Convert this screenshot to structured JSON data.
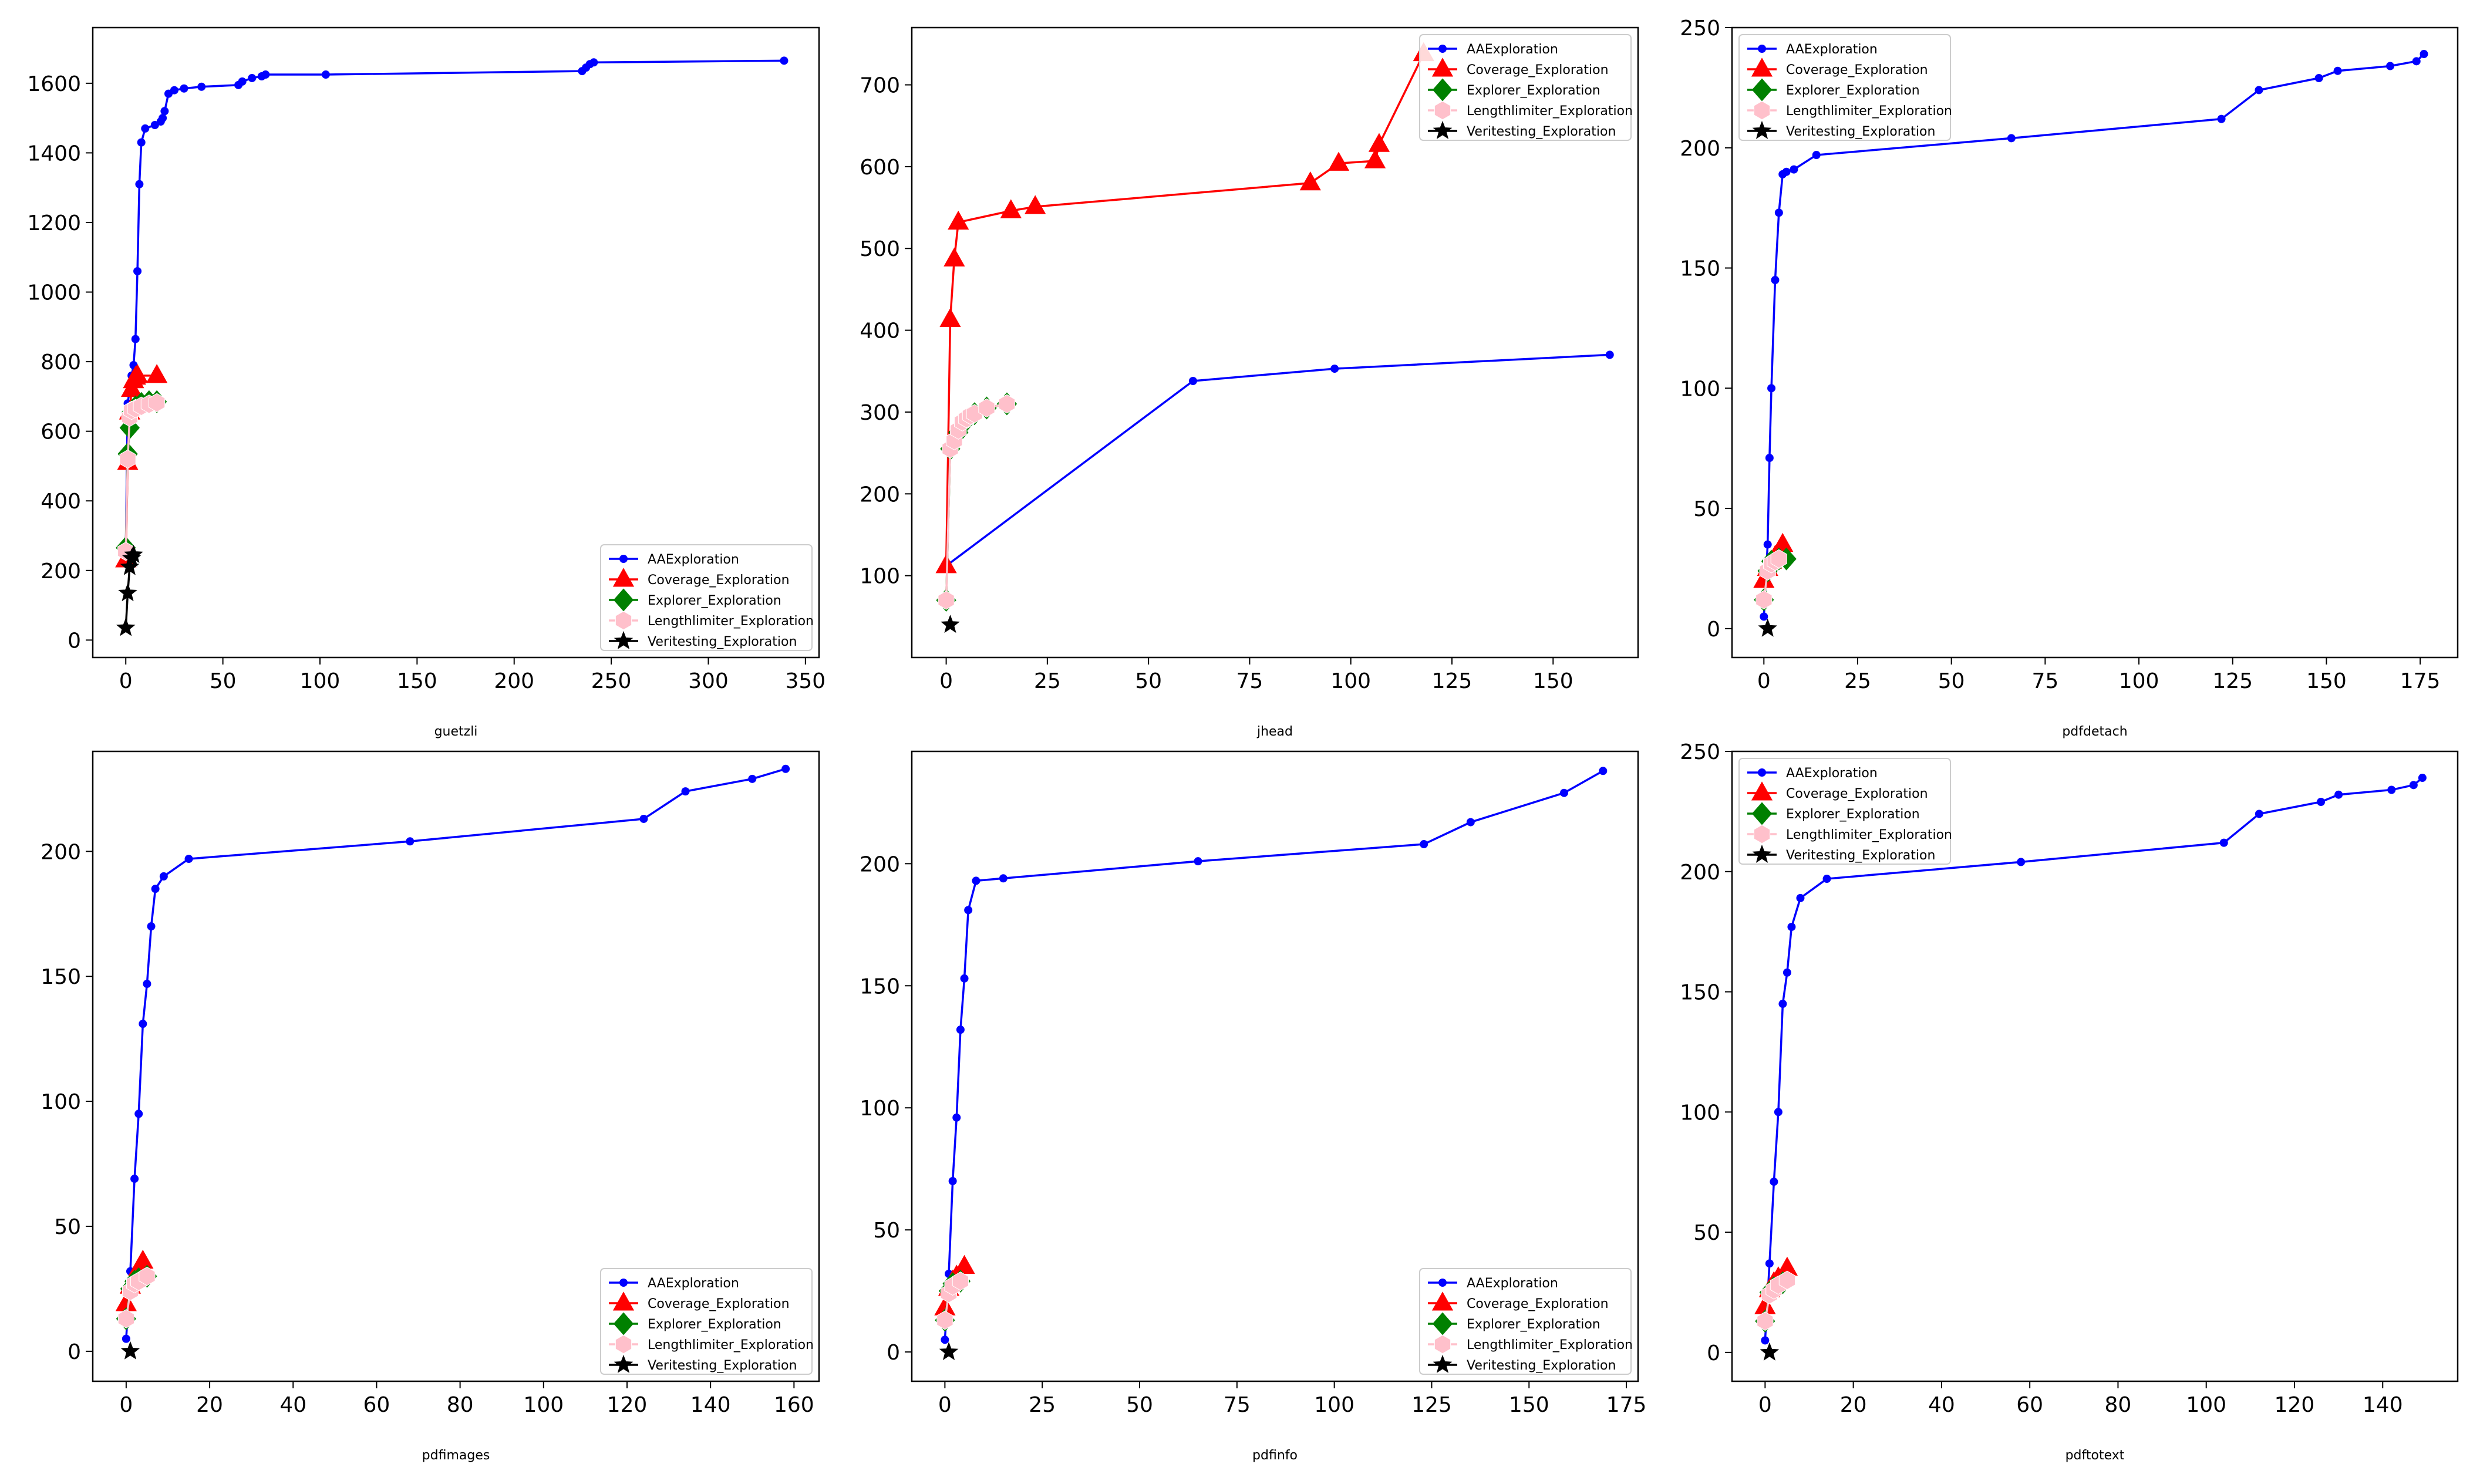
{
  "figure_title": "",
  "colors": {
    "AAExploration": "#0000ff",
    "Coverage_Exploration": "#ff0000",
    "Explorer_Exploration": "#008000",
    "Lengthlimiter_Exploration": "#ffc0cb",
    "Veritesting_Exploration": "#000000"
  },
  "chart_data": [
    {
      "type": "line",
      "title": "",
      "xlabel": "guetzli",
      "ylabel": "",
      "xlim": [
        -17,
        357
      ],
      "ylim": [
        -50,
        1760
      ],
      "xticks": [
        0,
        50,
        100,
        150,
        200,
        250,
        300,
        350
      ],
      "yticks": [
        0,
        200,
        400,
        600,
        800,
        1000,
        1200,
        1400,
        1600
      ],
      "legend": "lower-right",
      "series": [
        {
          "name": "AAExploration",
          "marker": "dot",
          "x": [
            0,
            1,
            2,
            3,
            4,
            5,
            6,
            7,
            8,
            10,
            15,
            18,
            19,
            20,
            22,
            25,
            30,
            39,
            58,
            60,
            65,
            70,
            72,
            103,
            235,
            237,
            239,
            241,
            339
          ],
          "y": [
            250,
            680,
            720,
            760,
            790,
            865,
            1060,
            1310,
            1430,
            1470,
            1480,
            1490,
            1500,
            1520,
            1570,
            1580,
            1585,
            1590,
            1595,
            1605,
            1615,
            1620,
            1625,
            1625,
            1635,
            1645,
            1655,
            1660,
            1665
          ]
        },
        {
          "name": "Coverage_Exploration",
          "marker": "triangle",
          "x": [
            0,
            1,
            2,
            3,
            4,
            5,
            6,
            16
          ],
          "y": [
            230,
            510,
            655,
            720,
            745,
            755,
            760,
            760
          ]
        },
        {
          "name": "Explorer_Exploration",
          "marker": "diamond",
          "x": [
            0,
            1,
            2,
            3,
            5,
            8,
            12,
            16
          ],
          "y": [
            265,
            535,
            610,
            655,
            670,
            680,
            685,
            685
          ]
        },
        {
          "name": "Lengthlimiter_Exploration",
          "marker": "hexagon",
          "x": [
            0,
            1,
            2,
            3,
            5,
            8,
            12,
            16
          ],
          "y": [
            255,
            520,
            640,
            660,
            665,
            672,
            678,
            682
          ]
        },
        {
          "name": "Veritesting_Exploration",
          "marker": "star",
          "x": [
            0,
            1,
            2,
            3,
            4
          ],
          "y": [
            35,
            135,
            210,
            235,
            245
          ]
        }
      ]
    },
    {
      "type": "line",
      "title": "",
      "xlabel": "jhead",
      "ylabel": "",
      "xlim": [
        -8.5,
        171
      ],
      "ylim": [
        0,
        770
      ],
      "xticks": [
        0,
        25,
        50,
        75,
        100,
        125,
        150
      ],
      "yticks": [
        100,
        200,
        300,
        400,
        500,
        600,
        700
      ],
      "legend": "top-right",
      "series": [
        {
          "name": "AAExploration",
          "marker": "dot",
          "x": [
            0,
            61,
            96,
            164
          ],
          "y": [
            112,
            338,
            353,
            370
          ]
        },
        {
          "name": "Coverage_Exploration",
          "marker": "triangle",
          "x": [
            0,
            1,
            2,
            3,
            16,
            22,
            90,
            97,
            106,
            107,
            118
          ],
          "y": [
            112,
            413,
            487,
            532,
            546,
            551,
            580,
            604,
            607,
            627,
            738
          ]
        },
        {
          "name": "Explorer_Exploration",
          "marker": "diamond",
          "x": [
            0,
            1,
            3,
            5,
            7,
            10,
            15
          ],
          "y": [
            70,
            255,
            275,
            290,
            298,
            305,
            310
          ]
        },
        {
          "name": "Lengthlimiter_Exploration",
          "marker": "hexagon",
          "x": [
            0,
            1,
            2,
            3,
            4,
            5,
            6,
            7,
            10,
            15
          ],
          "y": [
            70,
            255,
            265,
            278,
            288,
            292,
            296,
            298,
            305,
            310
          ]
        },
        {
          "name": "Veritesting_Exploration",
          "marker": "star",
          "x": [
            1
          ],
          "y": [
            40
          ]
        }
      ]
    },
    {
      "type": "line",
      "title": "",
      "xlabel": "pdfdetach",
      "ylabel": "",
      "xlim": [
        -8.5,
        185
      ],
      "ylim": [
        -12,
        250
      ],
      "xticks": [
        0,
        25,
        50,
        75,
        100,
        125,
        150,
        175
      ],
      "yticks": [
        0,
        50,
        100,
        150,
        200,
        250
      ],
      "legend": "top-left",
      "series": [
        {
          "name": "AAExploration",
          "marker": "dot",
          "x": [
            0,
            1,
            1.5,
            2,
            3,
            4,
            5,
            6,
            8,
            14,
            66,
            122,
            132,
            148,
            153,
            167,
            174,
            176
          ],
          "y": [
            5,
            35,
            71,
            100,
            145,
            173,
            189,
            190,
            191,
            197,
            204,
            212,
            224,
            229,
            232,
            234,
            236,
            239
          ]
        },
        {
          "name": "Coverage_Exploration",
          "marker": "triangle",
          "x": [
            0,
            1,
            2,
            3,
            4,
            5
          ],
          "y": [
            20,
            25,
            28,
            30,
            32,
            35
          ]
        },
        {
          "name": "Explorer_Exploration",
          "marker": "diamond",
          "x": [
            0,
            1,
            2,
            4,
            6
          ],
          "y": [
            12,
            24,
            28,
            29,
            29
          ]
        },
        {
          "name": "Lengthlimiter_Exploration",
          "marker": "hexagon",
          "x": [
            0,
            1,
            2,
            3,
            4
          ],
          "y": [
            12,
            24,
            27,
            28,
            29
          ]
        },
        {
          "name": "Veritesting_Exploration",
          "marker": "star",
          "x": [
            1
          ],
          "y": [
            0
          ]
        }
      ]
    },
    {
      "type": "line",
      "title": "",
      "xlabel": "pdfimages",
      "ylabel": "",
      "xlim": [
        -8,
        166
      ],
      "ylim": [
        -12,
        240
      ],
      "xticks": [
        0,
        20,
        40,
        60,
        80,
        100,
        120,
        140,
        160
      ],
      "yticks": [
        0,
        50,
        100,
        150,
        200
      ],
      "legend": "lower-right",
      "series": [
        {
          "name": "AAExploration",
          "marker": "dot",
          "x": [
            0,
            1,
            2,
            3,
            4,
            5,
            6,
            7,
            9,
            15,
            68,
            124,
            134,
            150,
            158
          ],
          "y": [
            5,
            32,
            69,
            95,
            131,
            147,
            170,
            185,
            190,
            197,
            204,
            213,
            224,
            229,
            233
          ]
        },
        {
          "name": "Coverage_Exploration",
          "marker": "triangle",
          "x": [
            0,
            1,
            2,
            3,
            4
          ],
          "y": [
            19,
            26,
            29,
            33,
            36
          ]
        },
        {
          "name": "Explorer_Exploration",
          "marker": "diamond",
          "x": [
            0,
            1,
            2,
            3,
            5
          ],
          "y": [
            13,
            25,
            28,
            29,
            30
          ]
        },
        {
          "name": "Lengthlimiter_Exploration",
          "marker": "hexagon",
          "x": [
            0,
            1,
            2,
            3,
            5
          ],
          "y": [
            13,
            24,
            27,
            28,
            30
          ]
        },
        {
          "name": "Veritesting_Exploration",
          "marker": "star",
          "x": [
            1
          ],
          "y": [
            0
          ]
        }
      ]
    },
    {
      "type": "line",
      "title": "",
      "xlabel": "pdfinfo",
      "ylabel": "",
      "xlim": [
        -8.5,
        178
      ],
      "ylim": [
        -12,
        246
      ],
      "xticks": [
        0,
        25,
        50,
        75,
        100,
        125,
        150,
        175
      ],
      "yticks": [
        0,
        50,
        100,
        150,
        200
      ],
      "legend": "lower-right",
      "series": [
        {
          "name": "AAExploration",
          "marker": "dot",
          "x": [
            0,
            1,
            2,
            3,
            4,
            5,
            6,
            8,
            15,
            65,
            123,
            135,
            159,
            169
          ],
          "y": [
            5,
            32,
            70,
            96,
            132,
            153,
            181,
            193,
            194,
            201,
            208,
            217,
            229,
            238
          ]
        },
        {
          "name": "Coverage_Exploration",
          "marker": "triangle",
          "x": [
            0,
            1,
            2,
            3,
            5
          ],
          "y": [
            18,
            26,
            29,
            31,
            35
          ]
        },
        {
          "name": "Explorer_Exploration",
          "marker": "diamond",
          "x": [
            0,
            1,
            2,
            4
          ],
          "y": [
            13,
            25,
            28,
            29
          ]
        },
        {
          "name": "Lengthlimiter_Exploration",
          "marker": "hexagon",
          "x": [
            0,
            1,
            2,
            4
          ],
          "y": [
            13,
            24,
            27,
            29
          ]
        },
        {
          "name": "Veritesting_Exploration",
          "marker": "star",
          "x": [
            1
          ],
          "y": [
            0
          ]
        }
      ]
    },
    {
      "type": "line",
      "title": "",
      "xlabel": "pdftotext",
      "ylabel": "",
      "xlim": [
        -7.5,
        157
      ],
      "ylim": [
        -12,
        250
      ],
      "xticks": [
        0,
        20,
        40,
        60,
        80,
        100,
        120,
        140
      ],
      "yticks": [
        0,
        50,
        100,
        150,
        200,
        250
      ],
      "legend": "top-left",
      "series": [
        {
          "name": "AAExploration",
          "marker": "dot",
          "x": [
            0,
            1,
            2,
            3,
            4,
            5,
            6,
            8,
            14,
            58,
            104,
            112,
            126,
            130,
            142,
            147,
            149
          ],
          "y": [
            5,
            37,
            71,
            100,
            145,
            158,
            177,
            189,
            197,
            204,
            212,
            224,
            229,
            232,
            234,
            236,
            239
          ]
        },
        {
          "name": "Coverage_Exploration",
          "marker": "triangle",
          "x": [
            0,
            1,
            2,
            3,
            5
          ],
          "y": [
            19,
            26,
            29,
            31,
            35
          ]
        },
        {
          "name": "Explorer_Exploration",
          "marker": "diamond",
          "x": [
            0,
            1,
            2,
            4
          ],
          "y": [
            13,
            25,
            27,
            29
          ]
        },
        {
          "name": "Lengthlimiter_Exploration",
          "marker": "hexagon",
          "x": [
            0,
            1,
            2,
            3,
            5
          ],
          "y": [
            13,
            24,
            26,
            28,
            30
          ]
        },
        {
          "name": "Veritesting_Exploration",
          "marker": "star",
          "x": [
            1
          ],
          "y": [
            0
          ]
        }
      ]
    }
  ]
}
